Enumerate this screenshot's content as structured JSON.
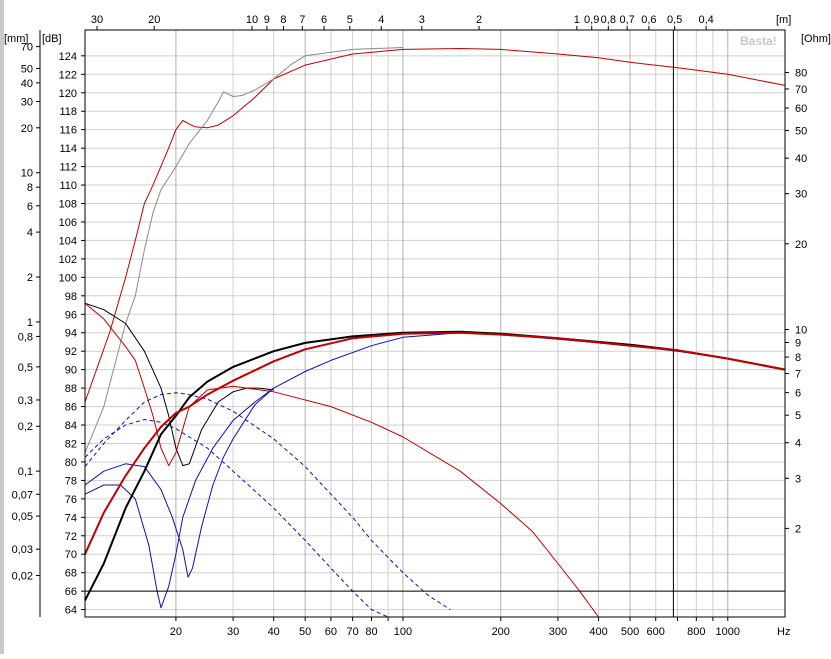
{
  "app": {
    "watermark": "Basta!"
  },
  "colors": {
    "background": "#ffffff",
    "frame_left": "#c9c9c9",
    "grid": "#cfcfcf",
    "grid_major": "#b0b0b0",
    "red": "#c00000",
    "blue": "#1010b0",
    "black": "#000000",
    "gray": "#8a8a8a"
  },
  "chart_data": {
    "type": "line",
    "xscale": "log",
    "xlim": [
      10.5,
      1500
    ],
    "xunit": "Hz",
    "x_ticks": [
      20,
      30,
      40,
      50,
      60,
      70,
      80,
      90,
      100,
      200,
      300,
      400,
      500,
      600,
      700,
      800,
      900,
      1000
    ],
    "x_tick_labels": [
      "20",
      "30",
      "40",
      "50",
      "60",
      "70",
      "80",
      "",
      "100",
      "200",
      "300",
      "400",
      "500",
      "600",
      "",
      "800",
      "",
      "1000"
    ],
    "top_axis": {
      "unit": "[m]",
      "label_values": [
        30,
        20,
        10,
        9,
        8,
        7,
        6,
        5,
        4,
        3,
        2,
        1,
        0.9,
        0.8,
        0.7,
        0.6,
        0.5,
        0.4
      ],
      "labels": [
        "30",
        "20",
        "10",
        "9",
        "8",
        "7",
        "6",
        "5",
        "4",
        "3",
        "2",
        "1",
        "0,9",
        "0,8",
        "0,7",
        "0,6",
        "0,5",
        "0,4"
      ]
    },
    "y_db": {
      "unit": "[dB]",
      "ylim": [
        63.2,
        126.8
      ],
      "ticks": [
        64,
        66,
        68,
        70,
        72,
        74,
        76,
        78,
        80,
        82,
        84,
        86,
        88,
        90,
        92,
        94,
        96,
        98,
        100,
        102,
        104,
        106,
        108,
        110,
        112,
        114,
        116,
        118,
        120,
        122,
        124
      ]
    },
    "y_mm": {
      "unit": "[mm]",
      "scale": "log",
      "ticks": [
        0.02,
        0.03,
        0.05,
        0.07,
        0.1,
        0.2,
        0.3,
        0.5,
        0.8,
        1,
        2,
        4,
        6,
        8,
        10,
        20,
        30,
        40,
        50,
        70
      ],
      "labels": [
        "0,02",
        "0,03",
        "0,05",
        "0,07",
        "0,1",
        "0,2",
        "0,3",
        "0,5",
        "0,8",
        "1",
        "2",
        "4",
        "6",
        "8",
        "10",
        "20",
        "30",
        "40",
        "50",
        "70"
      ]
    },
    "y_ohm": {
      "unit": "[Ohm]",
      "scale": "log",
      "ticks": [
        2,
        3,
        4,
        5,
        6,
        7,
        8,
        9,
        10,
        20,
        30,
        40,
        50,
        60,
        70,
        80
      ],
      "labels": [
        "2",
        "3",
        "4",
        "5",
        "6",
        "7",
        "8",
        "9",
        "10",
        "20",
        "30",
        "40",
        "50",
        "60",
        "70",
        "80"
      ]
    },
    "markers": {
      "vertical_x": 680,
      "horizontal_db": 66
    },
    "series": [
      {
        "style": "red",
        "width": 1,
        "y": "db",
        "points": [
          [
            10.5,
            86.5
          ],
          [
            12.5,
            94
          ],
          [
            14,
            100
          ],
          [
            15,
            104
          ],
          [
            16,
            108
          ],
          [
            17,
            110
          ],
          [
            19,
            114
          ],
          [
            20,
            116
          ],
          [
            21,
            117
          ],
          [
            22,
            116.6
          ],
          [
            23,
            116.3
          ],
          [
            25,
            116.2
          ],
          [
            27,
            116.5
          ],
          [
            30,
            117.5
          ],
          [
            35,
            119.5
          ],
          [
            40,
            121.5
          ],
          [
            50,
            123
          ],
          [
            70,
            124.2
          ],
          [
            100,
            124.7
          ],
          [
            150,
            124.8
          ],
          [
            200,
            124.7
          ],
          [
            300,
            124.2
          ],
          [
            400,
            123.8
          ],
          [
            500,
            123.3
          ],
          [
            700,
            122.7
          ],
          [
            1000,
            122
          ],
          [
            1500,
            120.8
          ]
        ]
      },
      {
        "style": "gray",
        "width": 1,
        "y": "db",
        "points": [
          [
            10.5,
            81
          ],
          [
            12,
            86
          ],
          [
            14,
            95
          ],
          [
            15,
            98
          ],
          [
            16,
            103
          ],
          [
            17,
            107
          ],
          [
            18,
            109.5
          ],
          [
            20,
            112
          ],
          [
            22,
            114.5
          ],
          [
            25,
            117
          ],
          [
            27,
            119
          ],
          [
            28,
            120.1
          ],
          [
            30,
            119.6
          ],
          [
            32,
            119.7
          ],
          [
            35,
            120.3
          ],
          [
            40,
            121.5
          ],
          [
            45,
            123
          ],
          [
            50,
            124
          ],
          [
            70,
            124.7
          ],
          [
            100,
            124.9
          ]
        ]
      },
      {
        "style": "black",
        "width": 1,
        "y": "db",
        "points": [
          [
            10.5,
            97.2
          ],
          [
            12,
            96.5
          ],
          [
            14,
            95
          ],
          [
            16,
            92
          ],
          [
            18,
            88
          ],
          [
            19,
            85
          ],
          [
            20,
            81.5
          ],
          [
            21,
            79.6
          ],
          [
            22,
            79.8
          ],
          [
            24,
            83.5
          ],
          [
            27,
            86.5
          ],
          [
            30,
            87.6
          ],
          [
            33,
            88
          ],
          [
            36,
            88
          ],
          [
            40,
            87.8
          ]
        ]
      },
      {
        "style": "red",
        "width": 1,
        "y": "db",
        "points": [
          [
            10.5,
            97.2
          ],
          [
            12,
            95.5
          ],
          [
            14,
            92.5
          ],
          [
            15,
            91
          ],
          [
            16,
            88
          ],
          [
            17,
            85
          ],
          [
            18,
            81.5
          ],
          [
            19,
            79.6
          ],
          [
            20,
            81
          ],
          [
            22,
            86
          ],
          [
            25,
            87.8
          ],
          [
            30,
            88.2
          ],
          [
            40,
            87.6
          ],
          [
            60,
            86
          ],
          [
            80,
            84.3
          ],
          [
            100,
            82.7
          ],
          [
            150,
            79
          ],
          [
            200,
            75.5
          ],
          [
            250,
            72.5
          ],
          [
            300,
            69
          ],
          [
            350,
            66
          ],
          [
            400,
            63
          ]
        ]
      },
      {
        "style": "blue",
        "width": 1,
        "y": "db",
        "points": [
          [
            10.5,
            76.5
          ],
          [
            12,
            77.5
          ],
          [
            13.5,
            77.5
          ],
          [
            15,
            76
          ],
          [
            16.5,
            71
          ],
          [
            17.5,
            66
          ],
          [
            18,
            64.2
          ],
          [
            19,
            66.5
          ],
          [
            20,
            70
          ],
          [
            21,
            74
          ],
          [
            23,
            78
          ],
          [
            26,
            81.5
          ],
          [
            30,
            84.5
          ],
          [
            35,
            86.5
          ],
          [
            40,
            88
          ],
          [
            50,
            89.8
          ],
          [
            60,
            91
          ],
          [
            80,
            92.6
          ],
          [
            100,
            93.5
          ],
          [
            150,
            94
          ],
          [
            200,
            93.8
          ],
          [
            300,
            93.3
          ],
          [
            500,
            92.6
          ],
          [
            700,
            92
          ],
          [
            1000,
            91.2
          ],
          [
            1500,
            90
          ]
        ]
      },
      {
        "style": "blue",
        "width": 1,
        "y": "db",
        "points": [
          [
            10.5,
            77.5
          ],
          [
            12,
            79
          ],
          [
            14,
            79.8
          ],
          [
            16,
            79.5
          ],
          [
            18,
            77
          ],
          [
            19.5,
            74
          ],
          [
            21,
            70.5
          ],
          [
            21.8,
            67.5
          ],
          [
            22.5,
            68.5
          ],
          [
            24,
            73
          ],
          [
            26,
            77.5
          ],
          [
            28,
            80.5
          ],
          [
            30,
            82.5
          ],
          [
            35,
            86.2
          ],
          [
            40,
            88
          ]
        ]
      },
      {
        "style": "blue-dashed",
        "width": 1,
        "y": "db",
        "points": [
          [
            10.5,
            79.5
          ],
          [
            12,
            82
          ],
          [
            14,
            84.5
          ],
          [
            16,
            86.5
          ],
          [
            18,
            87.3
          ],
          [
            20,
            87.5
          ],
          [
            22,
            87.3
          ],
          [
            25,
            86.8
          ],
          [
            30,
            85.5
          ],
          [
            40,
            82.5
          ],
          [
            50,
            79.5
          ],
          [
            60,
            76.5
          ],
          [
            70,
            74
          ],
          [
            80,
            71.5
          ],
          [
            100,
            68
          ],
          [
            120,
            65.5
          ],
          [
            140,
            64
          ]
        ]
      },
      {
        "style": "blue-dashed",
        "width": 1,
        "y": "db",
        "points": [
          [
            10.5,
            80.5
          ],
          [
            12,
            82.5
          ],
          [
            14,
            84
          ],
          [
            16,
            84.6
          ],
          [
            18,
            84.3
          ],
          [
            20,
            83.6
          ],
          [
            25,
            81.5
          ],
          [
            30,
            79
          ],
          [
            40,
            75
          ],
          [
            50,
            71.5
          ],
          [
            60,
            68.5
          ],
          [
            70,
            66
          ],
          [
            80,
            64
          ],
          [
            90,
            63
          ]
        ]
      },
      {
        "style": "black",
        "width": 2,
        "y": "db",
        "points": [
          [
            10.5,
            65
          ],
          [
            12,
            69
          ],
          [
            14,
            75
          ],
          [
            16,
            79
          ],
          [
            18,
            83
          ],
          [
            20,
            85
          ],
          [
            22,
            87
          ],
          [
            25,
            88.7
          ],
          [
            30,
            90.3
          ],
          [
            40,
            92
          ],
          [
            50,
            92.9
          ],
          [
            70,
            93.6
          ],
          [
            100,
            94
          ],
          [
            150,
            94.1
          ],
          [
            200,
            93.9
          ],
          [
            300,
            93.4
          ],
          [
            500,
            92.7
          ],
          [
            700,
            92.1
          ],
          [
            1000,
            91.2
          ],
          [
            1500,
            90
          ]
        ]
      },
      {
        "style": "red",
        "width": 2,
        "y": "db",
        "points": [
          [
            10.5,
            70
          ],
          [
            12,
            74.5
          ],
          [
            14,
            78.5
          ],
          [
            16,
            81.5
          ],
          [
            18,
            83.8
          ],
          [
            20,
            85.3
          ],
          [
            22,
            86
          ],
          [
            25,
            87.3
          ],
          [
            30,
            88.8
          ],
          [
            40,
            90.9
          ],
          [
            50,
            92.2
          ],
          [
            70,
            93.4
          ],
          [
            100,
            93.9
          ],
          [
            150,
            94
          ],
          [
            200,
            93.8
          ],
          [
            300,
            93.4
          ],
          [
            500,
            92.6
          ],
          [
            700,
            92.1
          ],
          [
            1000,
            91.2
          ],
          [
            1500,
            90
          ]
        ]
      }
    ]
  }
}
